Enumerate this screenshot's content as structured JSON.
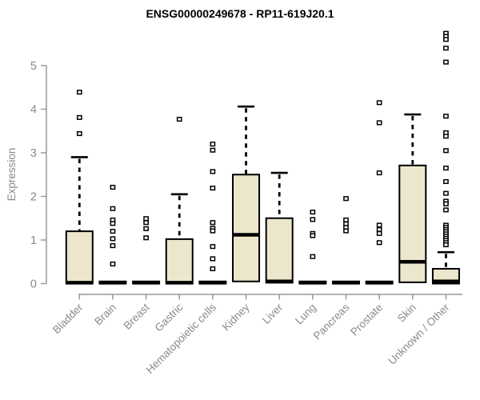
{
  "chart_data": {
    "type": "boxplot",
    "title": "ENSG00000249678 - RP11-619J20.1",
    "ylabel": "Expression",
    "yticks": [
      0,
      1,
      2,
      3,
      4,
      5
    ],
    "ylim": [
      0,
      5.8
    ],
    "grid": false,
    "legend": "none",
    "categories": [
      "Bladder",
      "Brain",
      "Breast",
      "Gastric",
      "Hematopoietic cells",
      "Kidney",
      "Liver",
      "Lung",
      "Pancreas",
      "Prostate",
      "Skin",
      "Unknown / Other"
    ],
    "series": [
      {
        "category": "Bladder",
        "q1": 0,
        "median": 0.02,
        "q3": 1.2,
        "whisker_low": 0,
        "whisker_high": 2.9,
        "outliers": [
          4.39,
          3.81,
          3.44
        ]
      },
      {
        "category": "Brain",
        "q1": 0,
        "median": 0.02,
        "q3": 0.05,
        "whisker_low": 0,
        "whisker_high": 0.05,
        "outliers": [
          2.21,
          1.72,
          1.46,
          1.38,
          1.2,
          1.03,
          0.87,
          0.45
        ]
      },
      {
        "category": "Breast",
        "q1": 0,
        "median": 0.02,
        "q3": 0.05,
        "whisker_low": 0,
        "whisker_high": 0.05,
        "outliers": [
          1.49,
          1.4,
          1.26,
          1.05
        ]
      },
      {
        "category": "Gastric",
        "q1": 0,
        "median": 0.02,
        "q3": 1.02,
        "whisker_low": 0,
        "whisker_high": 2.05,
        "outliers": [
          3.77
        ]
      },
      {
        "category": "Hematopoietic cells",
        "q1": 0,
        "median": 0.02,
        "q3": 0.05,
        "whisker_low": 0,
        "whisker_high": 0.05,
        "outliers": [
          3.2,
          3.06,
          2.57,
          2.19,
          1.4,
          1.27,
          1.21,
          0.85,
          0.57,
          0.34
        ]
      },
      {
        "category": "Kidney",
        "q1": 0.05,
        "median": 1.12,
        "q3": 2.5,
        "whisker_low": 0.05,
        "whisker_high": 4.06,
        "outliers": []
      },
      {
        "category": "Liver",
        "q1": 0.02,
        "median": 0.05,
        "q3": 1.5,
        "whisker_low": 0.02,
        "whisker_high": 2.54,
        "outliers": []
      },
      {
        "category": "Lung",
        "q1": 0,
        "median": 0.02,
        "q3": 0.05,
        "whisker_low": 0,
        "whisker_high": 0.05,
        "outliers": [
          1.64,
          1.47,
          1.15,
          1.1,
          0.62
        ]
      },
      {
        "category": "Pancreas",
        "q1": 0,
        "median": 0.02,
        "q3": 0.05,
        "whisker_low": 0,
        "whisker_high": 0.05,
        "outliers": [
          1.95,
          1.46,
          1.37,
          1.29,
          1.21
        ]
      },
      {
        "category": "Prostate",
        "q1": 0,
        "median": 0.02,
        "q3": 0.05,
        "whisker_low": 0,
        "whisker_high": 0.05,
        "outliers": [
          4.15,
          3.69,
          2.54,
          1.34,
          1.24,
          1.15,
          0.94
        ]
      },
      {
        "category": "Skin",
        "q1": 0.03,
        "median": 0.5,
        "q3": 2.71,
        "whisker_low": 0.03,
        "whisker_high": 3.88,
        "outliers": []
      },
      {
        "category": "Unknown / Other",
        "q1": 0,
        "median": 0.05,
        "q3": 0.34,
        "whisker_low": 0,
        "whisker_high": 0.72,
        "outliers": [
          5.74,
          5.67,
          5.6,
          5.4,
          5.08,
          3.84,
          3.46,
          3.38,
          3.05,
          2.65,
          2.34,
          2.07,
          1.89,
          1.83,
          1.69,
          1.34,
          1.29,
          1.24,
          1.19,
          1.14,
          1.09,
          1.04,
          0.99,
          0.94,
          0.89
        ]
      }
    ],
    "colors": {
      "box_fill": "#EBE6CC",
      "box_stroke": "#000000",
      "median": "#000000",
      "whisker": "#000000",
      "outlier_stroke": "#000000",
      "outlier_fill": "#ffffff",
      "axis": "#999999",
      "text": "#8a8a8a",
      "title": "#000000",
      "background": "#ffffff"
    }
  }
}
